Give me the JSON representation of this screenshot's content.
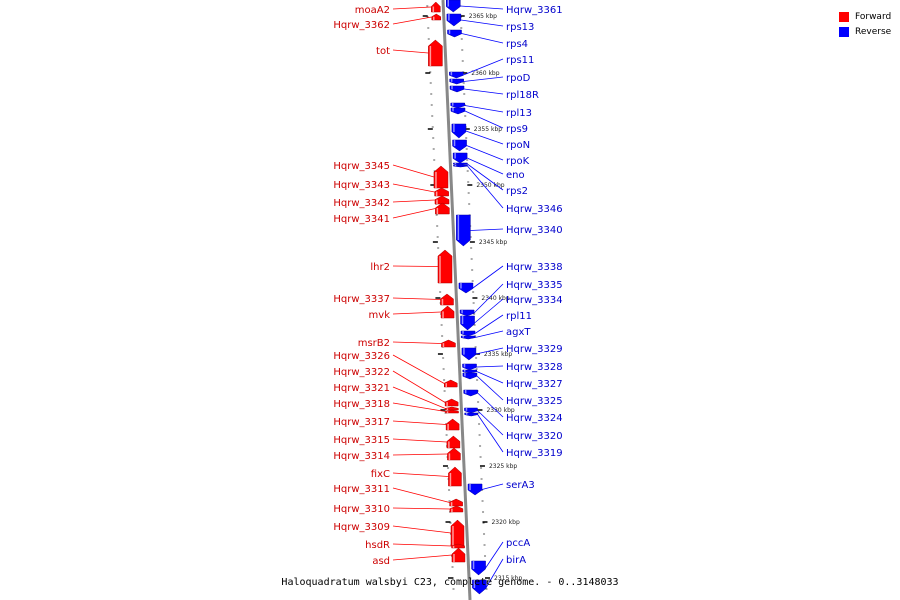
{
  "caption": "Haloquadratum walsbyi C23, complete genome. - 0..3148033",
  "legend": [
    {
      "label": "Forward",
      "color": "#ff0000"
    },
    {
      "label": "Reverse",
      "color": "#0000ff"
    }
  ],
  "colors": {
    "forward": "#ff0000",
    "reverse": "#0000ff",
    "backbone": "#888888"
  },
  "ticks": [
    "2365 kbp",
    "2360 kbp",
    "2355 kbp",
    "2350 kbp",
    "2345 kbp",
    "2340 kbp",
    "2335 kbp",
    "2330 kbp",
    "2325 kbp",
    "2320 kbp",
    "2315 kbp"
  ],
  "forward_genes": [
    "moaA2",
    "Hqrw_3362",
    "tot",
    "Hqrw_3345",
    "Hqrw_3343",
    "Hqrw_3342",
    "Hqrw_3341",
    "lhr2",
    "Hqrw_3337",
    "mvk",
    "msrB2",
    "Hqrw_3326",
    "Hqrw_3322",
    "Hqrw_3321",
    "Hqrw_3318",
    "Hqrw_3317",
    "Hqrw_3315",
    "Hqrw_3314",
    "fixC",
    "Hqrw_3311",
    "Hqrw_3310",
    "Hqrw_3309",
    "hsdR",
    "asd"
  ],
  "reverse_genes": [
    "Hqrw_3361",
    "rps13",
    "rps4",
    "rps11",
    "rpoD",
    "rpl18R",
    "rpl13",
    "rps9",
    "rpoN",
    "rpoK",
    "eno",
    "rps2",
    "Hqrw_3346",
    "Hqrw_3340",
    "Hqrw_3338",
    "Hqrw_3335",
    "Hqrw_3334",
    "rpl11",
    "agxT",
    "Hqrw_3329",
    "Hqrw_3328",
    "Hqrw_3327",
    "Hqrw_3325",
    "Hqrw_3324",
    "Hqrw_3320",
    "Hqrw_3319",
    "serA3",
    "pccA",
    "birA"
  ]
}
